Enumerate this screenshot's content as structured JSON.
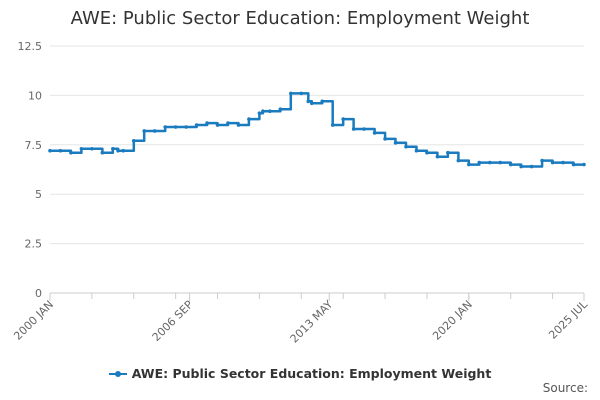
{
  "title": "AWE: Public Sector Education: Employment Weight",
  "source_label": "Source:",
  "legend_position": "bottom",
  "colors": {
    "series": "#1a7bbf",
    "grid": "#e6e6e6",
    "axis": "#cccccc",
    "text": "#666666"
  },
  "chart_data": {
    "type": "line",
    "title": "AWE: Public Sector Education: Employment Weight",
    "xlabel": "",
    "ylabel": "",
    "ylim": [
      0,
      12.5
    ],
    "yticks": [
      0,
      2.5,
      5,
      7.5,
      10,
      12.5
    ],
    "xlim": [
      "2000-01",
      "2025-07"
    ],
    "xtick_labels": [
      "2000 JAN",
      "2006 SEP",
      "2013 MAY",
      "2020 JAN",
      "2025 JUL"
    ],
    "grid": true,
    "series": [
      {
        "name": "AWE: Public Sector Education: Employment Weight",
        "x": [
          "2000-01",
          "2000-07",
          "2001-01",
          "2001-07",
          "2002-01",
          "2002-07",
          "2003-01",
          "2003-04",
          "2003-07",
          "2004-01",
          "2004-07",
          "2005-01",
          "2005-07",
          "2006-01",
          "2006-07",
          "2007-01",
          "2007-07",
          "2008-01",
          "2008-07",
          "2009-01",
          "2009-07",
          "2010-01",
          "2010-03",
          "2010-07",
          "2011-01",
          "2011-07",
          "2012-01",
          "2012-05",
          "2012-07",
          "2013-01",
          "2013-07",
          "2014-01",
          "2014-07",
          "2015-01",
          "2015-07",
          "2016-01",
          "2016-07",
          "2017-01",
          "2017-07",
          "2018-01",
          "2018-07",
          "2019-01",
          "2019-07",
          "2020-01",
          "2020-07",
          "2021-01",
          "2021-07",
          "2022-01",
          "2022-07",
          "2023-01",
          "2023-07",
          "2024-01",
          "2024-07",
          "2025-01",
          "2025-07"
        ],
        "values": [
          7.2,
          7.2,
          7.1,
          7.3,
          7.3,
          7.1,
          7.3,
          7.2,
          7.2,
          7.7,
          8.2,
          8.2,
          8.4,
          8.4,
          8.4,
          8.5,
          8.6,
          8.5,
          8.6,
          8.5,
          8.8,
          9.1,
          9.2,
          9.2,
          9.3,
          10.1,
          10.1,
          9.7,
          9.6,
          9.7,
          8.5,
          8.8,
          8.3,
          8.3,
          8.1,
          7.8,
          7.6,
          7.4,
          7.2,
          7.1,
          6.9,
          7.1,
          6.7,
          6.5,
          6.6,
          6.6,
          6.6,
          6.5,
          6.4,
          6.4,
          6.7,
          6.6,
          6.6,
          6.5,
          6.5
        ]
      }
    ]
  }
}
